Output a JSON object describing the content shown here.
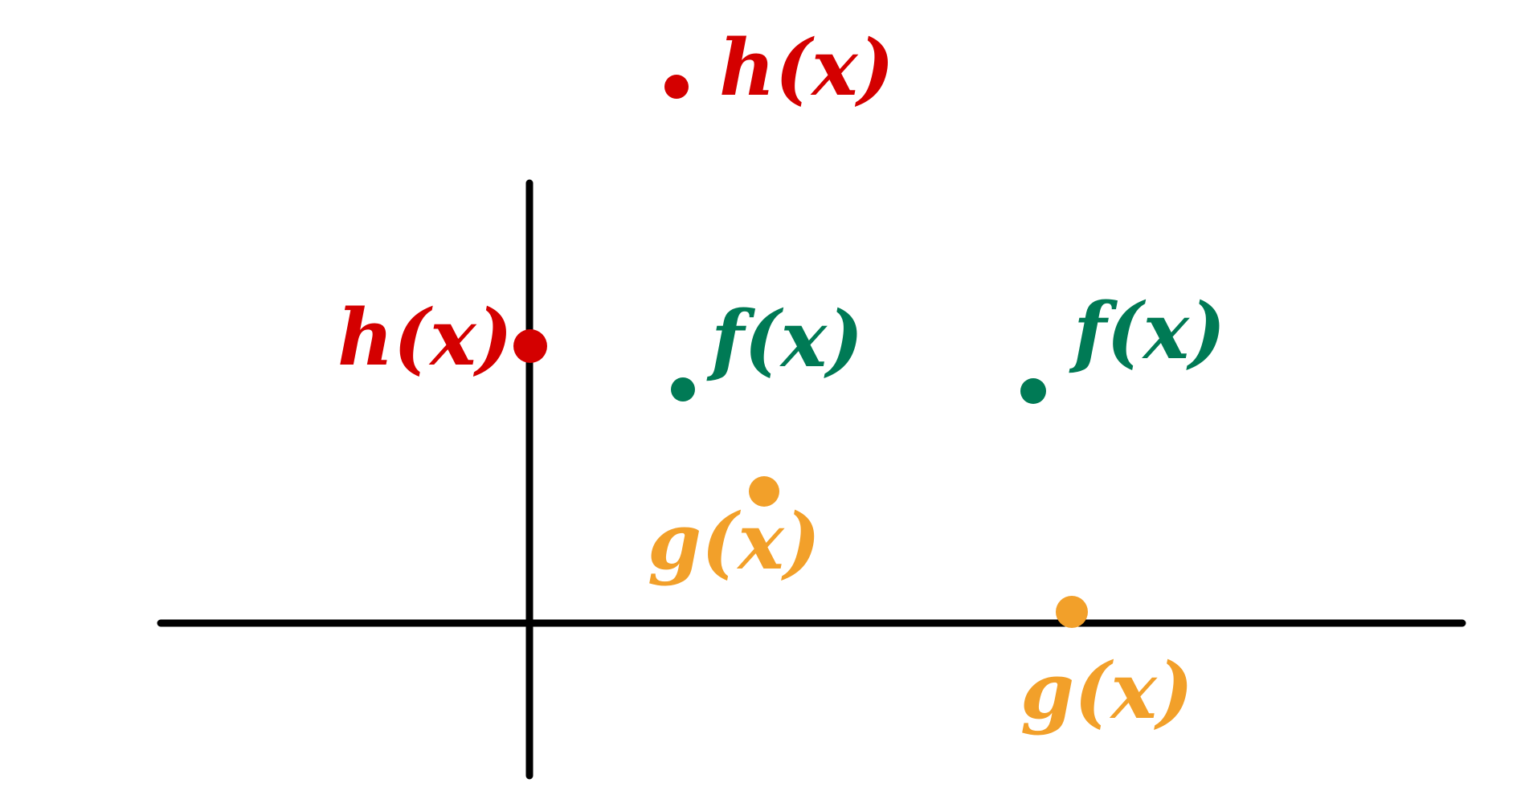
{
  "colors": {
    "axis": "#000000",
    "h": "#d40000",
    "f": "#007a55",
    "g": "#f2a02a",
    "background": "#ffffff"
  },
  "labels": {
    "h_top": "h(x)",
    "h_axis": "h(x)",
    "f_left": "f(x)",
    "f_right": "f(x)",
    "g_upper": "g(x)",
    "g_lower": "g(x)"
  }
}
